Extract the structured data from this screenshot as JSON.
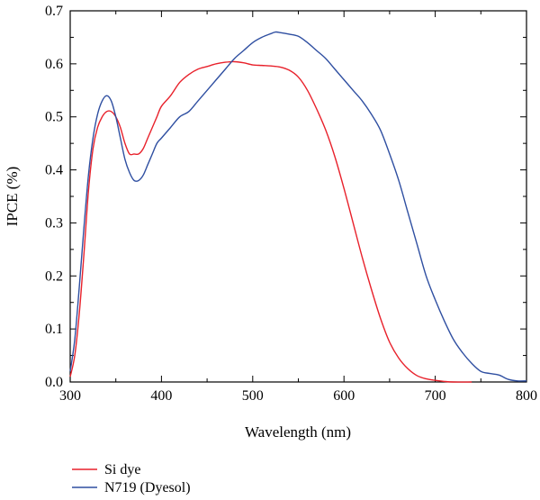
{
  "chart_data": {
    "type": "line",
    "title": "",
    "xlabel": "Wavelength (nm)",
    "ylabel": "IPCE (%)",
    "xlim": [
      300,
      800
    ],
    "ylim": [
      0.0,
      0.7
    ],
    "xticks": [
      300,
      400,
      500,
      600,
      700,
      800
    ],
    "xtick_labels": [
      "300",
      "400",
      "500",
      "600",
      "700",
      "800"
    ],
    "yticks": [
      0.0,
      0.1,
      0.2,
      0.3,
      0.4,
      0.5,
      0.6,
      0.7
    ],
    "ytick_labels": [
      "0.0",
      "0.1",
      "0.2",
      "0.3",
      "0.4",
      "0.5",
      "0.6",
      "0.7"
    ],
    "grid": false,
    "legend_position": "bottom-left",
    "series": [
      {
        "name": "Si dye",
        "color": "#e8212b",
        "points": [
          [
            300,
            0.01
          ],
          [
            305,
            0.05
          ],
          [
            310,
            0.13
          ],
          [
            315,
            0.24
          ],
          [
            320,
            0.36
          ],
          [
            325,
            0.44
          ],
          [
            330,
            0.48
          ],
          [
            335,
            0.5
          ],
          [
            340,
            0.51
          ],
          [
            345,
            0.51
          ],
          [
            350,
            0.5
          ],
          [
            355,
            0.48
          ],
          [
            360,
            0.45
          ],
          [
            365,
            0.43
          ],
          [
            370,
            0.43
          ],
          [
            375,
            0.43
          ],
          [
            380,
            0.44
          ],
          [
            385,
            0.46
          ],
          [
            390,
            0.48
          ],
          [
            395,
            0.5
          ],
          [
            400,
            0.52
          ],
          [
            410,
            0.54
          ],
          [
            420,
            0.565
          ],
          [
            430,
            0.58
          ],
          [
            440,
            0.59
          ],
          [
            450,
            0.595
          ],
          [
            460,
            0.6
          ],
          [
            470,
            0.603
          ],
          [
            480,
            0.604
          ],
          [
            490,
            0.602
          ],
          [
            500,
            0.598
          ],
          [
            510,
            0.597
          ],
          [
            520,
            0.596
          ],
          [
            530,
            0.594
          ],
          [
            540,
            0.588
          ],
          [
            550,
            0.575
          ],
          [
            560,
            0.55
          ],
          [
            570,
            0.515
          ],
          [
            580,
            0.475
          ],
          [
            590,
            0.425
          ],
          [
            600,
            0.365
          ],
          [
            610,
            0.3
          ],
          [
            620,
            0.235
          ],
          [
            630,
            0.175
          ],
          [
            640,
            0.12
          ],
          [
            650,
            0.075
          ],
          [
            660,
            0.045
          ],
          [
            670,
            0.025
          ],
          [
            680,
            0.012
          ],
          [
            690,
            0.006
          ],
          [
            700,
            0.003
          ],
          [
            710,
            0.001
          ],
          [
            720,
            0.0
          ],
          [
            740,
            0.0
          ]
        ]
      },
      {
        "name": "N719 (Dyesol)",
        "color": "#2f4fa1",
        "points": [
          [
            300,
            0.02
          ],
          [
            305,
            0.08
          ],
          [
            310,
            0.18
          ],
          [
            315,
            0.29
          ],
          [
            320,
            0.39
          ],
          [
            325,
            0.46
          ],
          [
            330,
            0.505
          ],
          [
            335,
            0.53
          ],
          [
            340,
            0.54
          ],
          [
            345,
            0.53
          ],
          [
            350,
            0.5
          ],
          [
            355,
            0.46
          ],
          [
            360,
            0.42
          ],
          [
            365,
            0.395
          ],
          [
            370,
            0.38
          ],
          [
            375,
            0.38
          ],
          [
            380,
            0.39
          ],
          [
            385,
            0.41
          ],
          [
            390,
            0.43
          ],
          [
            395,
            0.45
          ],
          [
            400,
            0.46
          ],
          [
            410,
            0.48
          ],
          [
            420,
            0.5
          ],
          [
            430,
            0.51
          ],
          [
            440,
            0.53
          ],
          [
            450,
            0.55
          ],
          [
            460,
            0.57
          ],
          [
            470,
            0.59
          ],
          [
            480,
            0.61
          ],
          [
            490,
            0.625
          ],
          [
            500,
            0.64
          ],
          [
            510,
            0.65
          ],
          [
            520,
            0.657
          ],
          [
            525,
            0.66
          ],
          [
            530,
            0.659
          ],
          [
            540,
            0.656
          ],
          [
            550,
            0.652
          ],
          [
            560,
            0.64
          ],
          [
            570,
            0.625
          ],
          [
            580,
            0.61
          ],
          [
            590,
            0.59
          ],
          [
            600,
            0.57
          ],
          [
            610,
            0.55
          ],
          [
            620,
            0.53
          ],
          [
            630,
            0.505
          ],
          [
            640,
            0.475
          ],
          [
            650,
            0.43
          ],
          [
            660,
            0.38
          ],
          [
            670,
            0.32
          ],
          [
            680,
            0.26
          ],
          [
            690,
            0.2
          ],
          [
            700,
            0.155
          ],
          [
            710,
            0.115
          ],
          [
            720,
            0.08
          ],
          [
            730,
            0.055
          ],
          [
            740,
            0.035
          ],
          [
            750,
            0.02
          ],
          [
            760,
            0.016
          ],
          [
            770,
            0.013
          ],
          [
            780,
            0.005
          ],
          [
            790,
            0.002
          ],
          [
            800,
            0.002
          ]
        ]
      }
    ]
  }
}
